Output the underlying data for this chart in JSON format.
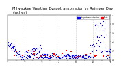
{
  "title": "Milwaukee Weather Evapotranspiration vs Rain per Day (Inches)",
  "title_fontsize": 3.8,
  "background_color": "#ffffff",
  "plot_bg_color": "#ffffff",
  "legend_labels": [
    "Evapotranspiration",
    "Rain"
  ],
  "legend_colors": [
    "#0000ff",
    "#ff0000"
  ],
  "xlim": [
    0,
    365
  ],
  "ylim": [
    0,
    1.0
  ],
  "tick_fontsize": 3.0,
  "grid_color": "#888888",
  "grid_style": ":",
  "yticks": [
    0.0,
    0.2,
    0.4,
    0.6,
    0.8,
    1.0
  ],
  "ytick_labels": [
    ".0",
    ".2",
    ".4",
    ".6",
    ".8",
    "1"
  ],
  "xtick_pos": [
    1,
    32,
    60,
    91,
    121,
    152,
    182,
    213,
    244,
    274,
    305,
    335,
    365
  ],
  "xtick_labels": [
    "1",
    "",
    "2",
    "",
    "3",
    "",
    "4",
    "",
    "5",
    "",
    "6",
    "",
    "7"
  ],
  "vgrid_x": [
    60,
    122,
    183,
    244,
    305
  ]
}
